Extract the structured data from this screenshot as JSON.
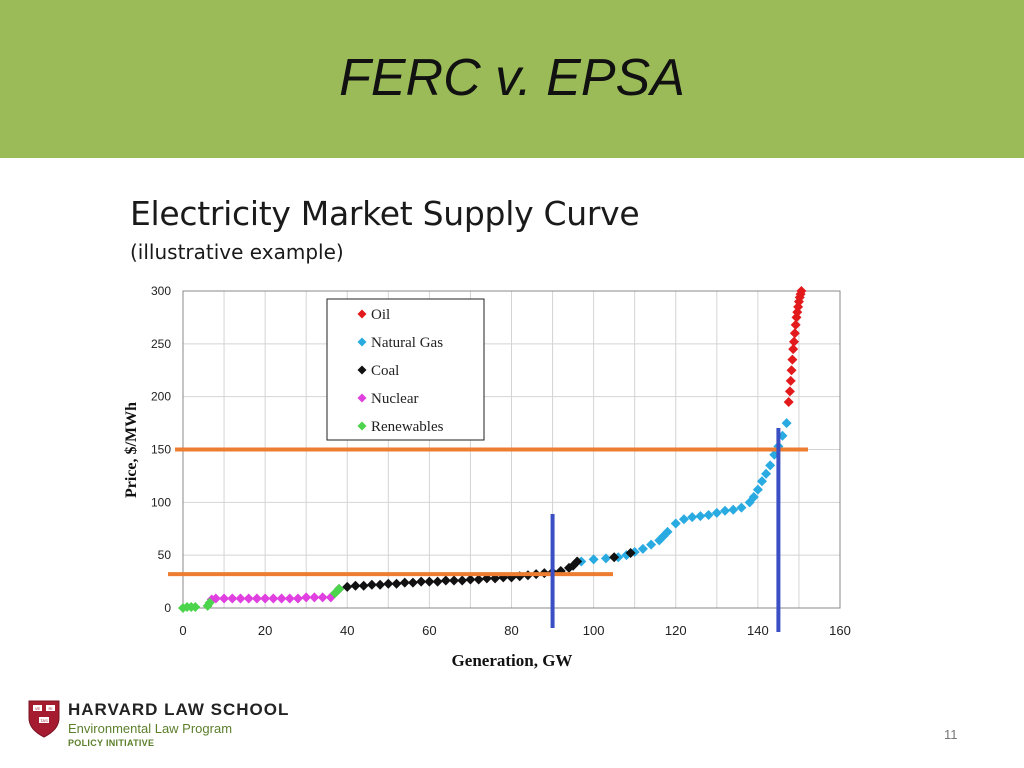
{
  "slide": {
    "title": "FERC v. EPSA",
    "subtitle": "Electricity Market Supply Curve",
    "subnote": "(illustrative example)",
    "page_number": "11"
  },
  "footer": {
    "school": "HARVARD LAW SCHOOL",
    "program": "Environmental Law Program",
    "initiative": "POLICY INITIATIVE",
    "shield_text": [
      "VE",
      "RI",
      "TAS"
    ]
  },
  "colors": {
    "header": "#9bbb59",
    "oil": "#e31a1c",
    "natural_gas": "#29abe2",
    "coal": "#111111",
    "nuclear": "#e040e0",
    "renewables": "#4cd44c",
    "price_line": "#ed7d31",
    "generation_line": "#3a4fc4"
  },
  "chart_data": {
    "type": "scatter",
    "xlabel": "Generation, GW",
    "ylabel": "Price, $/MWh",
    "xlim": [
      0,
      160
    ],
    "ylim": [
      0,
      300
    ],
    "xticks": [
      "0",
      "20",
      "40",
      "60",
      "80",
      "100",
      "120",
      "140",
      "160"
    ],
    "yticks": [
      "0",
      "50",
      "100",
      "150",
      "200",
      "250",
      "300"
    ],
    "grid": true,
    "legend_position": "top-left",
    "series": [
      {
        "name": "Oil",
        "color": "#e31a1c",
        "marker": "diamond",
        "x": [
          147.5,
          147.8,
          148.0,
          148.2,
          148.4,
          148.6,
          148.8,
          149.0,
          149.2,
          149.4,
          149.6,
          149.8,
          150.0,
          150.2,
          150.4,
          150.6
        ],
        "y": [
          195,
          205,
          215,
          225,
          235,
          245,
          252,
          260,
          268,
          275,
          280,
          285,
          290,
          294,
          297,
          300
        ]
      },
      {
        "name": "Natural Gas",
        "color": "#29abe2",
        "marker": "diamond",
        "x": [
          97,
          100,
          103,
          106,
          108,
          110,
          112,
          114,
          116,
          117,
          118,
          120,
          122,
          124,
          126,
          128,
          130,
          132,
          134,
          136,
          138,
          139,
          140,
          141,
          142,
          143,
          144,
          145,
          146,
          147
        ],
        "y": [
          44,
          46,
          47,
          48,
          50,
          53,
          56,
          60,
          64,
          68,
          72,
          80,
          84,
          86,
          87,
          88,
          90,
          92,
          93,
          95,
          100,
          105,
          112,
          120,
          127,
          135,
          145,
          153,
          163,
          175
        ]
      },
      {
        "name": "Coal",
        "color": "#111111",
        "marker": "diamond",
        "x": [
          38,
          40,
          42,
          44,
          46,
          48,
          50,
          52,
          54,
          56,
          58,
          60,
          62,
          64,
          66,
          68,
          70,
          72,
          74,
          76,
          78,
          80,
          82,
          84,
          86,
          88,
          90,
          92,
          94,
          95,
          96,
          105,
          109
        ],
        "y": [
          18,
          20,
          21,
          21,
          22,
          22,
          23,
          23,
          24,
          24,
          25,
          25,
          25,
          26,
          26,
          26,
          27,
          27,
          28,
          28,
          29,
          29,
          30,
          31,
          32,
          33,
          34,
          35,
          38,
          40,
          44,
          48,
          52
        ]
      },
      {
        "name": "Nuclear",
        "color": "#e040e0",
        "marker": "diamond",
        "x": [
          7,
          8,
          10,
          12,
          14,
          16,
          18,
          20,
          22,
          24,
          26,
          28,
          30,
          32,
          34,
          36
        ],
        "y": [
          8,
          9,
          9,
          9,
          9,
          9,
          9,
          9,
          9,
          9,
          9,
          9,
          10,
          10,
          10,
          10
        ]
      },
      {
        "name": "Renewables",
        "color": "#4cd44c",
        "marker": "diamond",
        "x": [
          0,
          1,
          2,
          3,
          6,
          6.5,
          37,
          38
        ],
        "y": [
          0,
          1,
          1,
          1,
          2,
          5,
          14,
          18
        ]
      }
    ],
    "overlays": {
      "price_levels": [
        150,
        32
      ],
      "generation_levels": [
        90,
        145
      ]
    }
  }
}
